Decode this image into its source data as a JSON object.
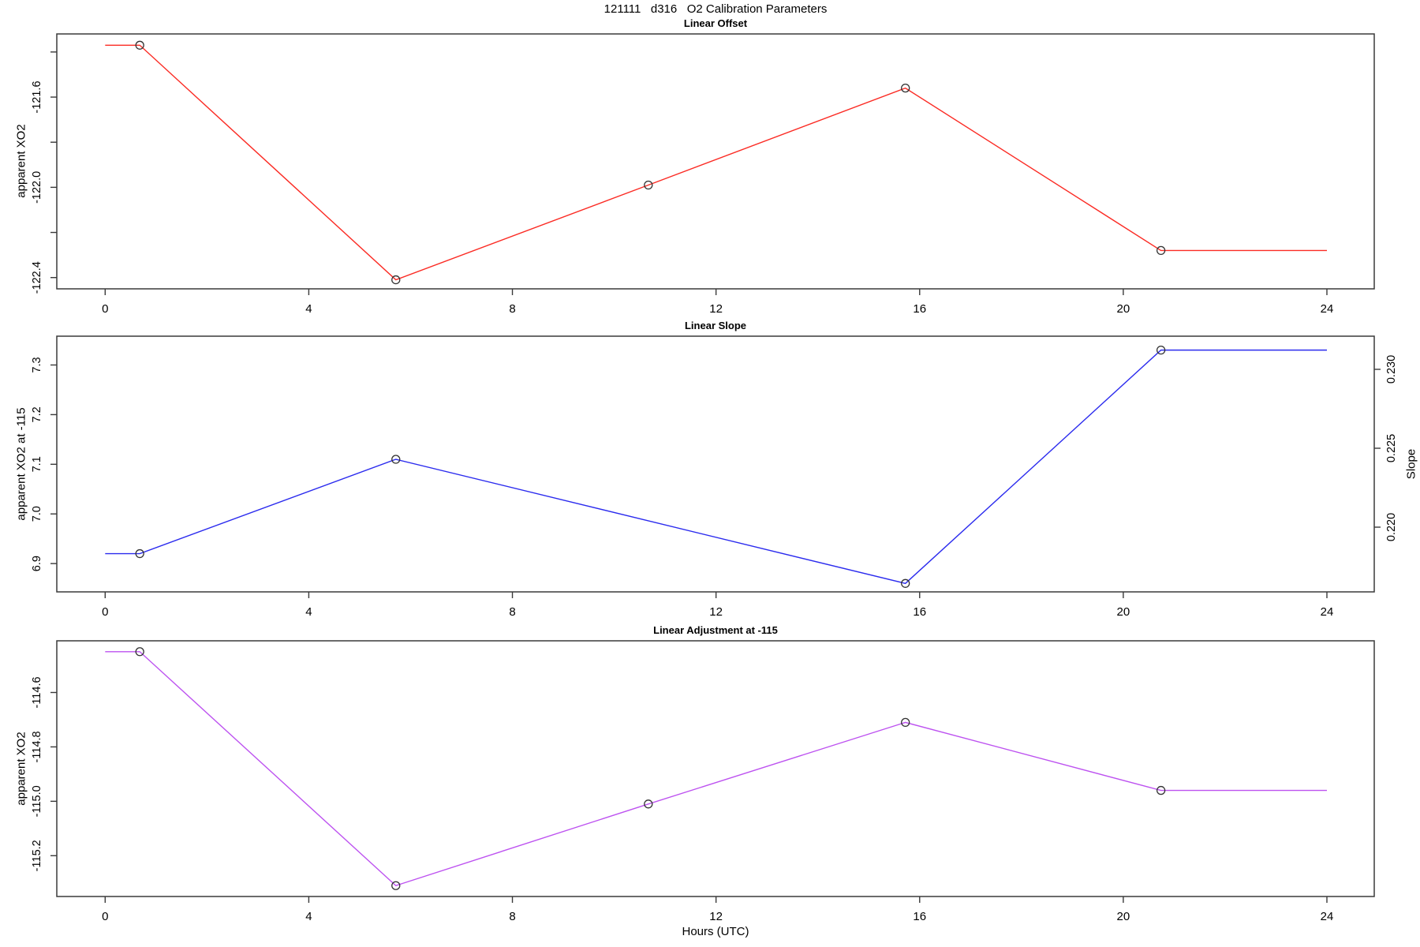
{
  "title": "121111   d316   O2 Calibration Parameters",
  "xlabel": "Hours (UTC)",
  "chart_data": [
    {
      "type": "line",
      "title": "Linear Offset",
      "ylabel": "apparent XO2",
      "line_color": "#fb2b24",
      "marker_color": "#333333",
      "x": [
        0,
        0.68,
        5.71,
        10.67,
        15.72,
        20.74,
        24
      ],
      "y": [
        -121.37,
        -121.37,
        -122.41,
        -121.99,
        -121.56,
        -122.28,
        -122.28
      ],
      "points_x": [
        0.68,
        5.71,
        10.67,
        15.72,
        20.74
      ],
      "points_y": [
        -121.37,
        -122.41,
        -121.99,
        -121.56,
        -122.28
      ],
      "xlim": [
        -0.95,
        24.93
      ],
      "ylim": [
        -122.45,
        -121.32
      ],
      "x_ticks": [
        0,
        4,
        8,
        12,
        16,
        20,
        24
      ],
      "y_ticks": [
        {
          "value": -121.4,
          "label": ""
        },
        {
          "value": -121.6,
          "label": "-121.6"
        },
        {
          "value": -121.8,
          "label": ""
        },
        {
          "value": -122.0,
          "label": "-122.0"
        },
        {
          "value": -122.2,
          "label": ""
        },
        {
          "value": -122.4,
          "label": "-122.4"
        }
      ]
    },
    {
      "type": "line",
      "title": "Linear Slope",
      "ylabel": "apparent XO2 at -115",
      "ylabel_right": "Slope",
      "line_color": "#2b2bee",
      "marker_color": "#333333",
      "x": [
        0,
        0.68,
        5.71,
        15.72,
        20.74,
        24
      ],
      "y": [
        6.92,
        6.92,
        7.11,
        6.86,
        7.33,
        7.33
      ],
      "points_x": [
        0.68,
        5.71,
        15.72,
        20.74
      ],
      "points_y": [
        6.92,
        7.11,
        6.86,
        7.33
      ],
      "slope_values": [
        0.2184,
        0.2243,
        0.2164,
        0.2314
      ],
      "xlim": [
        -0.95,
        24.93
      ],
      "ylim": [
        6.843,
        7.358
      ],
      "ylim_right": [
        0.2159,
        0.2321
      ],
      "x_ticks": [
        0,
        4,
        8,
        12,
        16,
        20,
        24
      ],
      "y_ticks": [
        {
          "value": 7.3,
          "label": "7.3"
        },
        {
          "value": 7.2,
          "label": "7.2"
        },
        {
          "value": 7.1,
          "label": "7.1"
        },
        {
          "value": 7.0,
          "label": "7.0"
        },
        {
          "value": 6.9,
          "label": "6.9"
        }
      ],
      "y_ticks_right": [
        {
          "value": 0.23,
          "label": "0.230"
        },
        {
          "value": 0.225,
          "label": "0.225"
        },
        {
          "value": 0.22,
          "label": "0.220"
        }
      ]
    },
    {
      "type": "line",
      "title": "Linear Adjustment at -115",
      "ylabel": "apparent XO2",
      "line_color": "#bd52f0",
      "marker_color": "#333333",
      "x": [
        0,
        0.68,
        5.71,
        10.67,
        15.72,
        20.74,
        24
      ],
      "y": [
        -114.45,
        -114.45,
        -115.31,
        -115.01,
        -114.71,
        -114.96,
        -114.96
      ],
      "points_x": [
        0.68,
        5.71,
        10.67,
        15.72,
        20.74
      ],
      "points_y": [
        -114.45,
        -115.31,
        -115.01,
        -114.71,
        -114.96
      ],
      "xlim": [
        -0.95,
        24.93
      ],
      "ylim": [
        -115.35,
        -114.41
      ],
      "x_ticks": [
        0,
        4,
        8,
        12,
        16,
        20,
        24
      ],
      "y_ticks": [
        {
          "value": -114.6,
          "label": "-114.6"
        },
        {
          "value": -114.8,
          "label": "-114.8"
        },
        {
          "value": -115.0,
          "label": "-115.0"
        },
        {
          "value": -115.2,
          "label": "-115.2"
        }
      ]
    }
  ]
}
